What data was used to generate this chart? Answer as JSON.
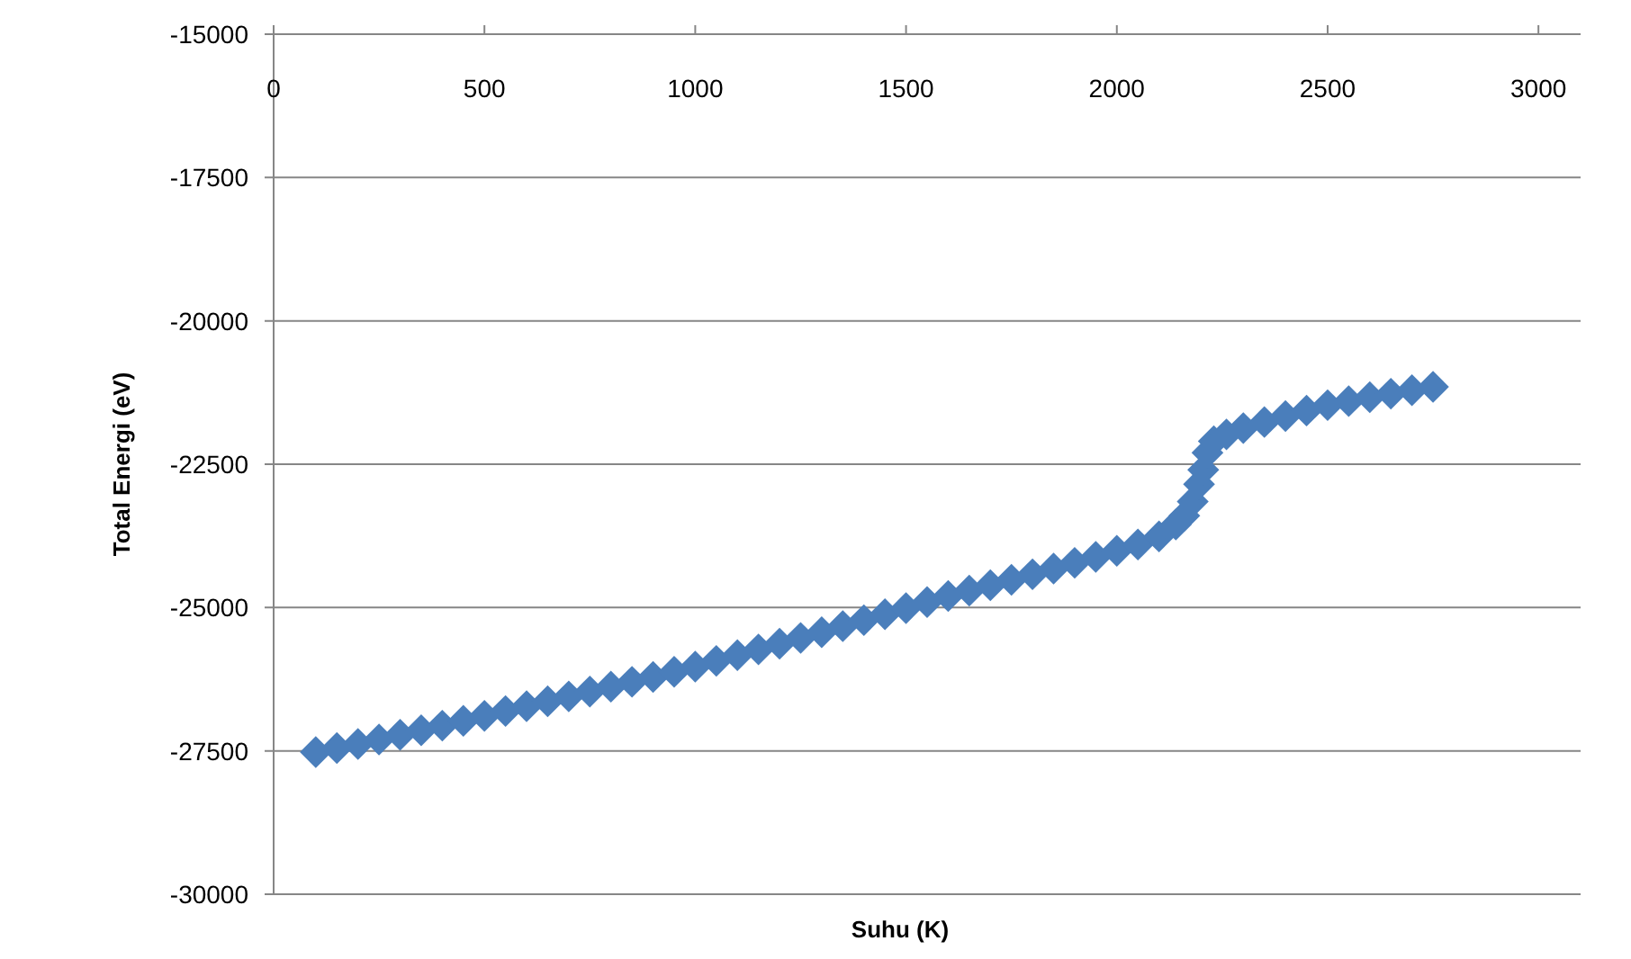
{
  "chart_data": {
    "type": "scatter",
    "xlabel": "Suhu (K)",
    "ylabel": "Total Energi (eV)",
    "xlim": [
      0,
      3100
    ],
    "xticks": [
      0,
      500,
      1000,
      1500,
      2000,
      2500,
      3000
    ],
    "ylim": [
      -30000,
      -15000
    ],
    "yticks": [
      -30000,
      -27500,
      -25000,
      -22500,
      -20000,
      -17500,
      -15000
    ],
    "grid": "y",
    "marker": "diamond",
    "series": [
      {
        "color": "#4a7ebb",
        "x": [
          100,
          150,
          200,
          250,
          300,
          350,
          400,
          450,
          500,
          550,
          600,
          650,
          700,
          750,
          800,
          850,
          900,
          950,
          1000,
          1050,
          1100,
          1150,
          1200,
          1250,
          1300,
          1350,
          1400,
          1450,
          1500,
          1550,
          1600,
          1650,
          1700,
          1750,
          1800,
          1850,
          1900,
          1950,
          2000,
          2050,
          2100,
          2140,
          2160,
          2180,
          2195,
          2205,
          2215,
          2230,
          2260,
          2300,
          2350,
          2400,
          2450,
          2500,
          2550,
          2600,
          2650,
          2700,
          2750
        ],
        "values": [
          -27520,
          -27450,
          -27380,
          -27300,
          -27220,
          -27140,
          -27060,
          -26975,
          -26890,
          -26805,
          -26720,
          -26635,
          -26550,
          -26465,
          -26380,
          -26295,
          -26210,
          -26120,
          -26030,
          -25930,
          -25830,
          -25730,
          -25630,
          -25530,
          -25430,
          -25325,
          -25220,
          -25115,
          -25010,
          -24905,
          -24800,
          -24705,
          -24610,
          -24515,
          -24420,
          -24320,
          -24220,
          -24115,
          -24010,
          -23900,
          -23760,
          -23550,
          -23400,
          -23150,
          -22850,
          -22600,
          -22300,
          -22100,
          -21980,
          -21870,
          -21765,
          -21660,
          -21565,
          -21470,
          -21400,
          -21330,
          -21270,
          -21210,
          -21150
        ]
      }
    ]
  }
}
